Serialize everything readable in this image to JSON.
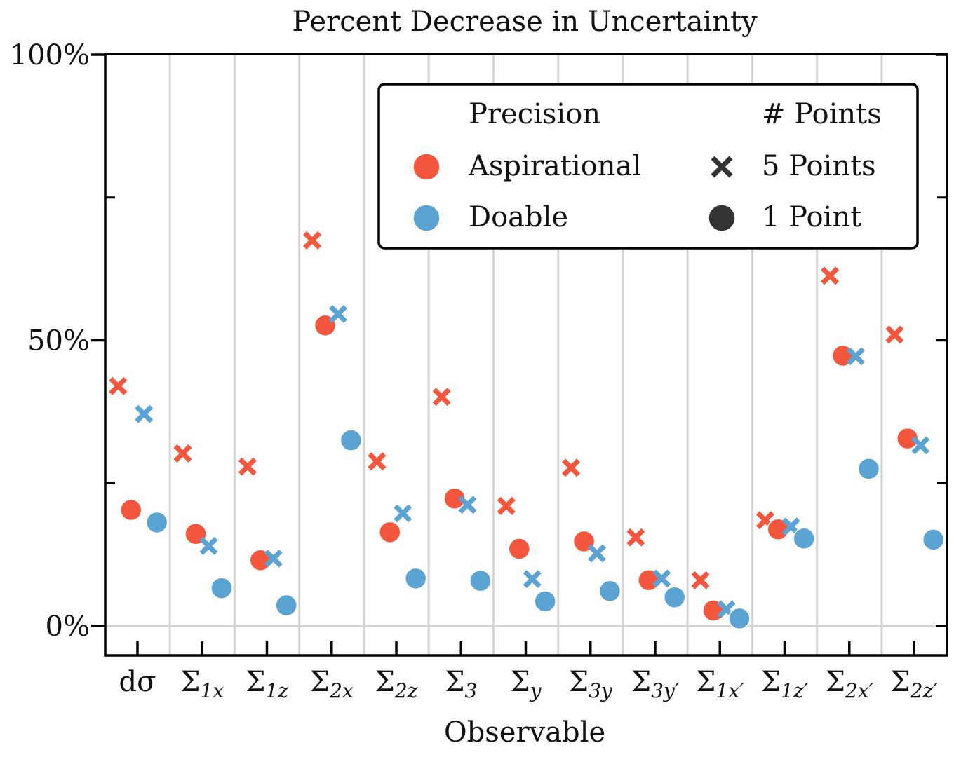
{
  "chart_data": {
    "type": "scatter",
    "title": "Percent Decrease in Uncertainty",
    "xlabel": "Observable",
    "ylabel": "",
    "ylim": [
      -5,
      100
    ],
    "yticks": [
      {
        "value": 0,
        "label": "0%"
      },
      {
        "value": 50,
        "label": "50%"
      },
      {
        "value": 100,
        "label": "100%"
      }
    ],
    "yticks_minor": [
      25,
      75
    ],
    "categories": [
      "dσ",
      "Σ1x",
      "Σ1z",
      "Σ2x",
      "Σ2z",
      "Σ3",
      "Σy",
      "Σ3y",
      "Σ3y′",
      "Σ1x′",
      "Σ1z′",
      "Σ2x′",
      "Σ2z′"
    ],
    "category_labels": [
      {
        "base": "dσ",
        "sub": ""
      },
      {
        "base": "Σ",
        "sub": "1x"
      },
      {
        "base": "Σ",
        "sub": "1z"
      },
      {
        "base": "Σ",
        "sub": "2x"
      },
      {
        "base": "Σ",
        "sub": "2z"
      },
      {
        "base": "Σ",
        "sub": "3"
      },
      {
        "base": "Σ",
        "sub": "y"
      },
      {
        "base": "Σ",
        "sub": "3y"
      },
      {
        "base": "Σ",
        "sub": "3y′"
      },
      {
        "base": "Σ",
        "sub": "1x′"
      },
      {
        "base": "Σ",
        "sub": "1z′"
      },
      {
        "base": "Σ",
        "sub": "2x′"
      },
      {
        "base": "Σ",
        "sub": "2z′"
      }
    ],
    "series": [
      {
        "name": "Aspirational",
        "points": "5 Points",
        "marker": "x",
        "color": "#f4573e",
        "offset": -0.3,
        "values": [
          42,
          30.2,
          27.9,
          67.5,
          28.8,
          40.1,
          21,
          27.7,
          15.5,
          8,
          18.5,
          61.3,
          51
        ]
      },
      {
        "name": "Aspirational",
        "points": "1 Point",
        "marker": "o",
        "color": "#f4573e",
        "offset": -0.1,
        "values": [
          20.3,
          16.1,
          11.5,
          52.6,
          16.4,
          22.3,
          13.5,
          14.8,
          8,
          2.7,
          16.9,
          47.3,
          32.8
        ]
      },
      {
        "name": "Doable",
        "points": "5 Points",
        "marker": "x",
        "color": "#5ba3d3",
        "offset": 0.1,
        "values": [
          37.1,
          14,
          11.8,
          54.6,
          19.7,
          21.2,
          8.2,
          12.7,
          8.3,
          2.9,
          17.4,
          47.2,
          31.6
        ]
      },
      {
        "name": "Doable",
        "points": "1 Point",
        "marker": "o",
        "color": "#5ba3d3",
        "offset": 0.3,
        "values": [
          18.1,
          6.6,
          3.6,
          32.5,
          8.3,
          7.9,
          4.3,
          6.1,
          5,
          1.3,
          15.3,
          27.5,
          15.1
        ]
      }
    ],
    "legend": {
      "placement": "top-right",
      "col1_title": "Precision",
      "col2_title": "# Points",
      "entries_col1": [
        {
          "label": "Aspirational",
          "color": "#f4573e"
        },
        {
          "label": "Doable",
          "color": "#5ba3d3"
        }
      ],
      "entries_col2": [
        {
          "label": "5 Points",
          "marker": "x",
          "color": "#333333"
        },
        {
          "label": "1 Point",
          "marker": "o",
          "color": "#333333"
        }
      ]
    },
    "grid": "vertical separators between categories"
  }
}
